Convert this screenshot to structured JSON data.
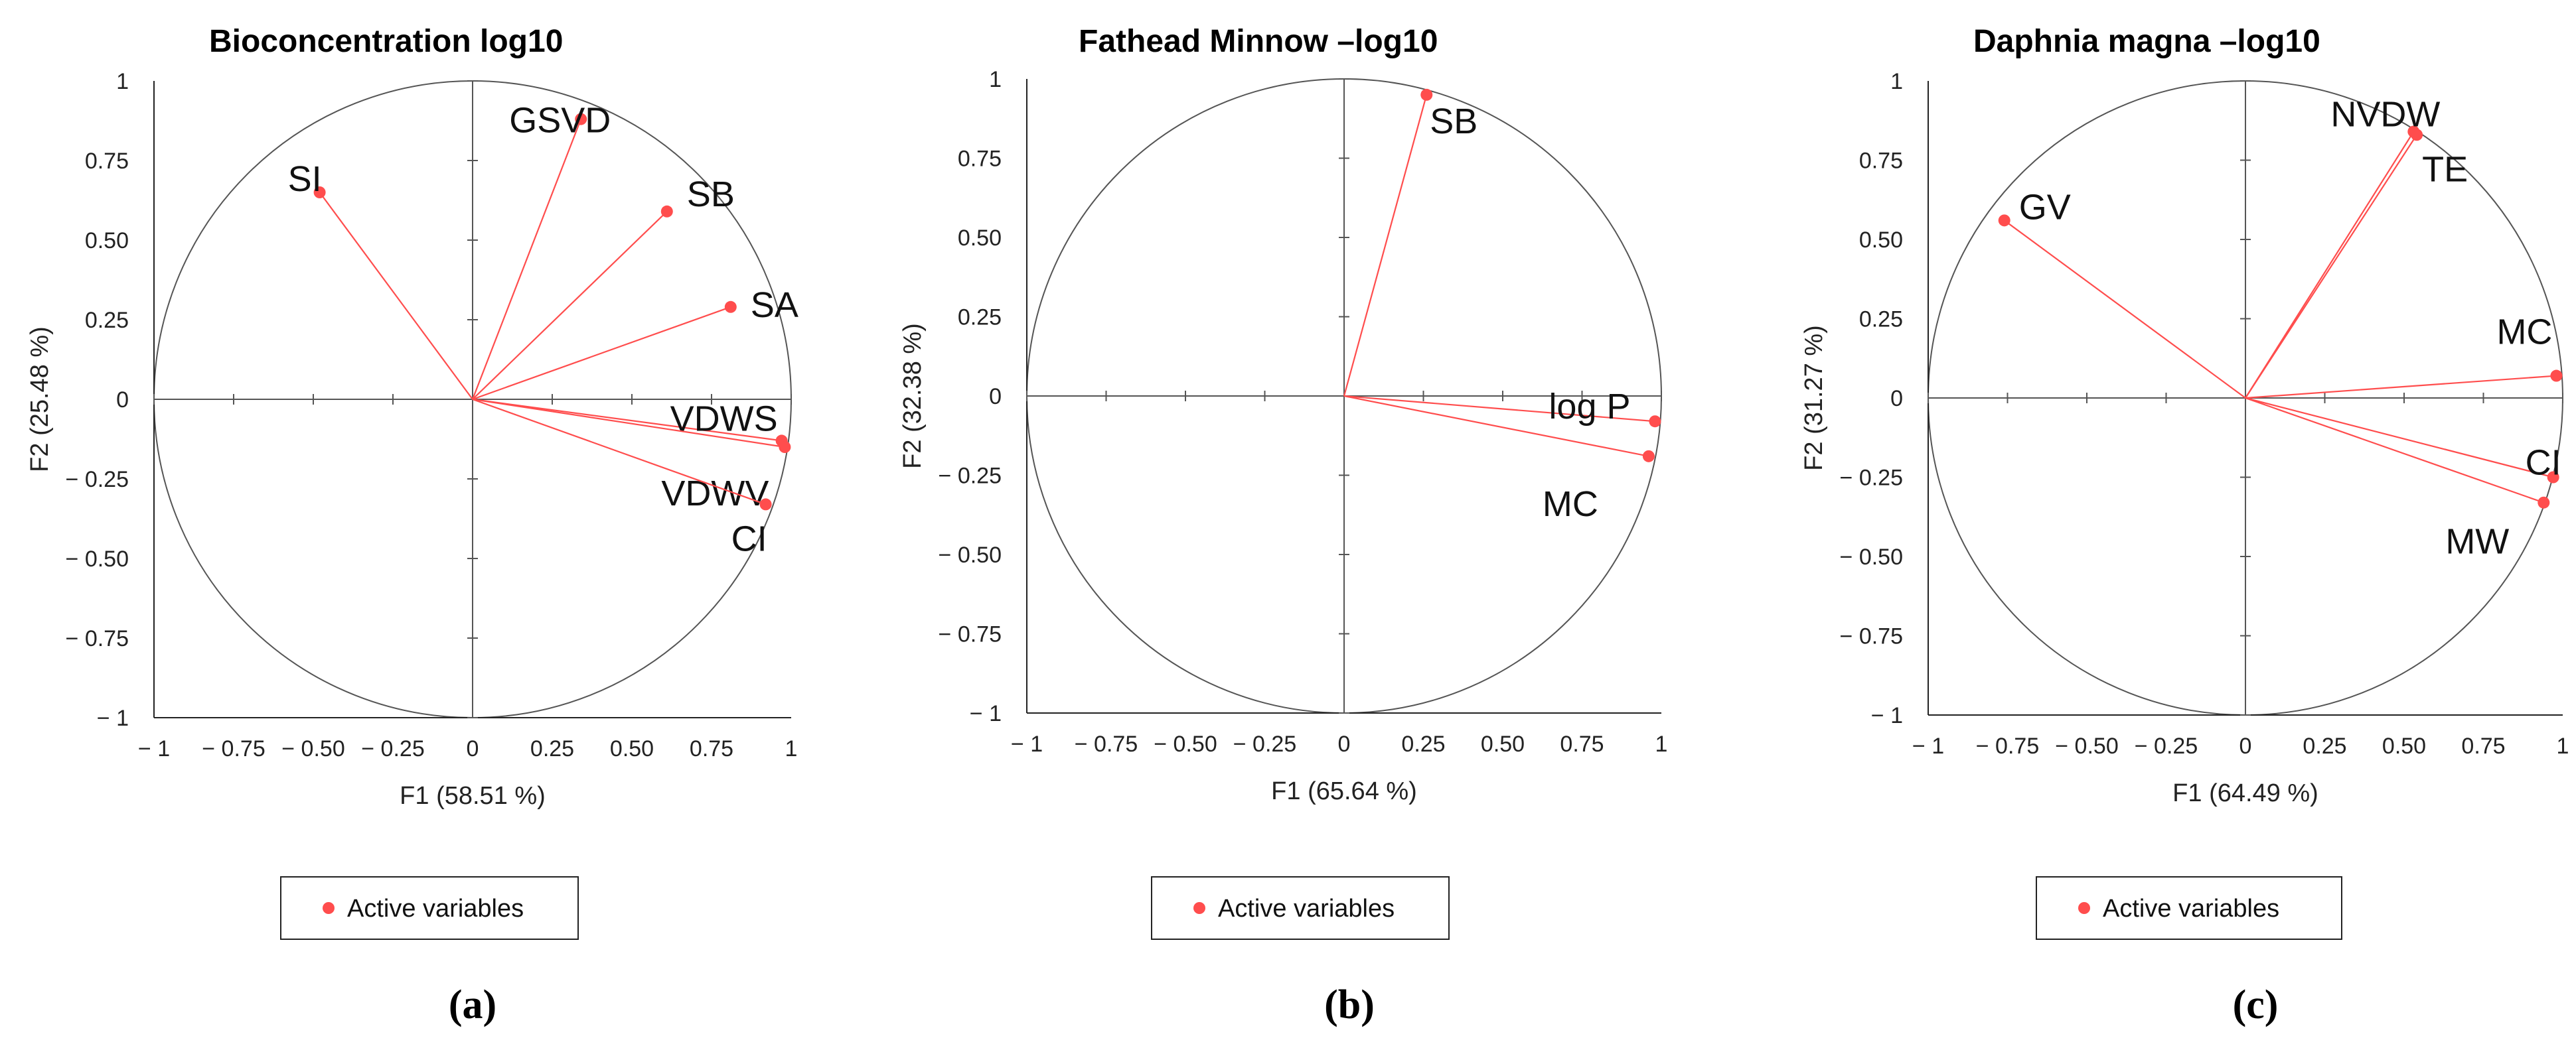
{
  "colors": {
    "vector": "#ff4d4d",
    "axis": "#555555",
    "circle": "#555555",
    "frame": "#222222"
  },
  "chart_data": [
    {
      "type": "scatter",
      "subtype": "pca-correlation-circle",
      "title": "Bioconcentration log10",
      "xlabel": "F1 (58.51 %)",
      "ylabel": "F2 (25.48 %)",
      "xlim": [
        -1,
        1
      ],
      "ylim": [
        -1,
        1
      ],
      "xticks": [
        "− 1",
        "− 0.75",
        "− 0.50",
        "− 0.25",
        "0",
        "0.25",
        "0.50",
        "0.75",
        "1"
      ],
      "yticks": [
        "1",
        "0.75",
        "0.50",
        "0.25",
        "0",
        "− 0.25",
        "− 0.50",
        "− 0.75",
        "− 1"
      ],
      "legend": "Active variables",
      "caption": "(a)",
      "points": [
        {
          "label": "SI",
          "x": -0.48,
          "y": 0.65
        },
        {
          "label": "GSVD",
          "x": 0.34,
          "y": 0.88
        },
        {
          "label": "SB",
          "x": 0.61,
          "y": 0.59
        },
        {
          "label": "SA",
          "x": 0.81,
          "y": 0.29
        },
        {
          "label": "VDWS",
          "x": 0.97,
          "y": -0.13
        },
        {
          "label": "VDWV",
          "x": 0.98,
          "y": -0.15
        },
        {
          "label": "CI",
          "x": 0.92,
          "y": -0.33
        }
      ]
    },
    {
      "type": "scatter",
      "subtype": "pca-correlation-circle",
      "title": "Fathead Minnow –log10",
      "xlabel": "F1 (65.64 %)",
      "ylabel": "F2 (32.38 %)",
      "xlim": [
        -1,
        1
      ],
      "ylim": [
        -1,
        1
      ],
      "xticks": [
        "− 1",
        "− 0.75",
        "− 0.50",
        "− 0.25",
        "0",
        "0.25",
        "0.50",
        "0.75",
        "1"
      ],
      "yticks": [
        "1",
        "0.75",
        "0.50",
        "0.25",
        "0",
        "− 0.25",
        "− 0.50",
        "− 0.75",
        "− 1"
      ],
      "legend": "Active variables",
      "caption": "(b)",
      "points": [
        {
          "label": "SB",
          "x": 0.26,
          "y": 0.95
        },
        {
          "label": "log P",
          "x": 0.98,
          "y": -0.08
        },
        {
          "label": "MC",
          "x": 0.96,
          "y": -0.19
        }
      ]
    },
    {
      "type": "scatter",
      "subtype": "pca-correlation-circle",
      "title": "Daphnia magna –log10",
      "xlabel": "F1 (64.49 %)",
      "ylabel": "F2 (31.27 %)",
      "xlim": [
        -1,
        1
      ],
      "ylim": [
        -1,
        1
      ],
      "xticks": [
        "− 1",
        "− 0.75",
        "− 0.50",
        "− 0.25",
        "0",
        "0.25",
        "0.50",
        "0.75",
        "1"
      ],
      "yticks": [
        "1",
        "0.75",
        "0.50",
        "0.25",
        "0",
        "− 0.25",
        "− 0.50",
        "− 0.75",
        "− 1"
      ],
      "legend": "Active variables",
      "caption": "(c)",
      "points": [
        {
          "label": "GV",
          "x": -0.76,
          "y": 0.56
        },
        {
          "label": "NVDW",
          "x": 0.53,
          "y": 0.84
        },
        {
          "label": "TE",
          "x": 0.54,
          "y": 0.83
        },
        {
          "label": "MC",
          "x": 0.98,
          "y": 0.07
        },
        {
          "label": "CI",
          "x": 0.97,
          "y": -0.25
        },
        {
          "label": "MW",
          "x": 0.94,
          "y": -0.33
        }
      ]
    }
  ]
}
